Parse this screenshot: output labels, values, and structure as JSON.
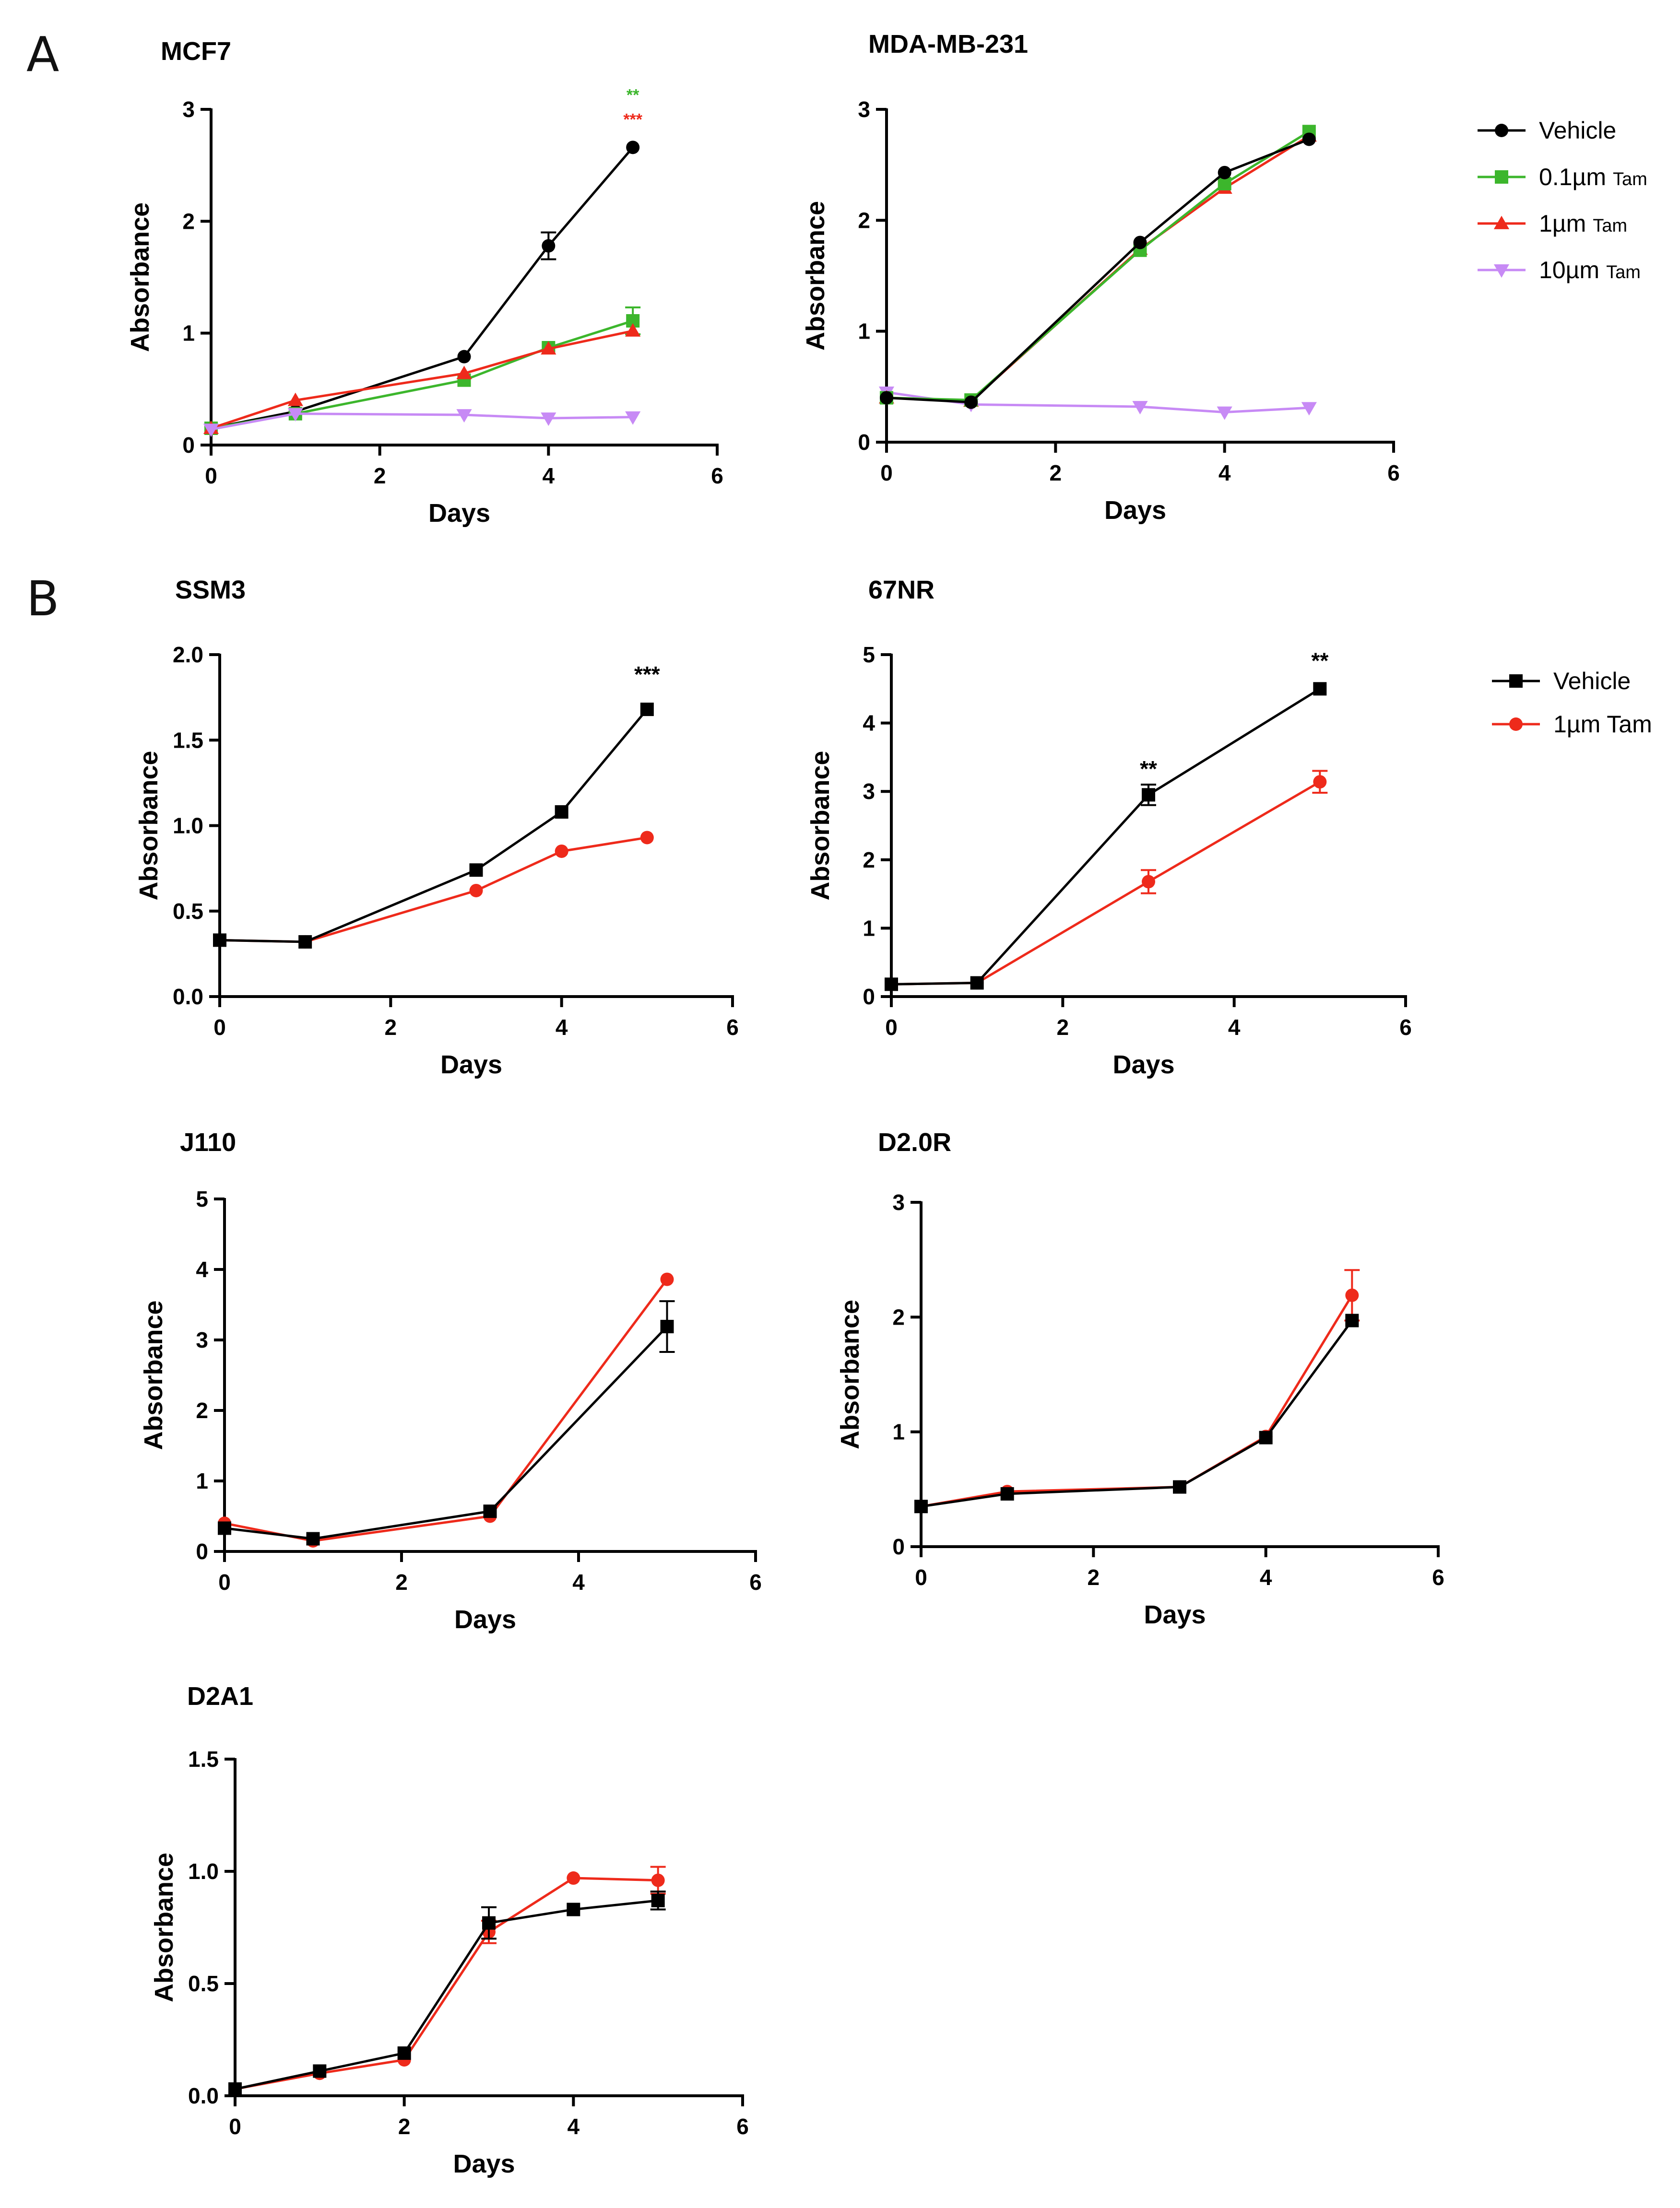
{
  "figure": {
    "panel_a_label": "A",
    "panel_b_label": "B"
  },
  "legend_a": {
    "entries": [
      {
        "name": "Vehicle",
        "suffix": "",
        "color": "#000000",
        "marker": "circle"
      },
      {
        "name": "0.1µm",
        "suffix": "Tam",
        "color": "#3cb62c",
        "marker": "square"
      },
      {
        "name": "1µm",
        "suffix": "Tam",
        "color": "#ee2a1b",
        "marker": "triangle"
      },
      {
        "name": "10µm",
        "suffix": "Tam",
        "color": "#c78af5",
        "marker": "triangle-down"
      }
    ]
  },
  "legend_b": {
    "entries": [
      {
        "name": "Vehicle",
        "suffix": "",
        "color": "#000000",
        "marker": "square"
      },
      {
        "name": "1µm Tam",
        "suffix": "",
        "color": "#ee2a1b",
        "marker": "circle"
      }
    ]
  },
  "chart_data": [
    {
      "id": "mcf7",
      "type": "line",
      "title": "MCF7",
      "xlabel": "Days",
      "ylabel": "Absorbance",
      "xlim": [
        0,
        6
      ],
      "ylim": [
        0,
        3
      ],
      "xticks": [
        0,
        2,
        4,
        6
      ],
      "yticks": [
        0,
        1,
        2,
        3
      ],
      "x": [
        0,
        1,
        3,
        4,
        5
      ],
      "series": [
        {
          "name": "Vehicle",
          "color": "#000000",
          "marker": "circle",
          "values": [
            0.15,
            0.3,
            0.79,
            1.78,
            2.66
          ],
          "err": [
            0,
            0,
            0,
            0.12,
            0
          ]
        },
        {
          "name": "0.1µm Tam",
          "color": "#3cb62c",
          "marker": "square",
          "values": [
            0.15,
            0.28,
            0.58,
            0.87,
            1.11
          ],
          "err": [
            0,
            0,
            0,
            0,
            0.12
          ]
        },
        {
          "name": "1µm Tam",
          "color": "#ee2a1b",
          "marker": "triangle",
          "values": [
            0.15,
            0.4,
            0.64,
            0.86,
            1.02
          ],
          "err": [
            0,
            0,
            0,
            0,
            0
          ]
        },
        {
          "name": "10µm Tam",
          "color": "#c78af5",
          "marker": "triangle-down",
          "values": [
            0.14,
            0.28,
            0.27,
            0.24,
            0.25
          ],
          "err": [
            0,
            0,
            0,
            0,
            0
          ]
        }
      ],
      "annotations": [
        {
          "text": "**",
          "x": 5,
          "y": 3.08,
          "color": "#3cb62c",
          "size": "small"
        },
        {
          "text": "***",
          "x": 5,
          "y": 2.86,
          "color": "#ee2a1b",
          "size": "small"
        }
      ]
    },
    {
      "id": "mdamb231",
      "type": "line",
      "title": "MDA-MB-231",
      "xlabel": "Days",
      "ylabel": "Absorbance",
      "xlim": [
        0,
        6
      ],
      "ylim": [
        0,
        3
      ],
      "xticks": [
        0,
        2,
        4,
        6
      ],
      "yticks": [
        0,
        1,
        2,
        3
      ],
      "x": [
        0,
        1,
        3,
        4,
        5
      ],
      "series": [
        {
          "name": "10µm Tam",
          "color": "#c78af5",
          "marker": "triangle-down",
          "values": [
            0.45,
            0.34,
            0.32,
            0.27,
            0.31
          ],
          "err": [
            0,
            0,
            0,
            0,
            0
          ]
        },
        {
          "name": "1µm Tam",
          "color": "#ee2a1b",
          "marker": "triangle",
          "values": [
            0.4,
            0.37,
            1.74,
            2.29,
            2.76
          ],
          "err": [
            0,
            0,
            0,
            0,
            0
          ]
        },
        {
          "name": "0.1µm Tam",
          "color": "#3cb62c",
          "marker": "square",
          "values": [
            0.4,
            0.38,
            1.73,
            2.33,
            2.8
          ],
          "err": [
            0,
            0,
            0,
            0,
            0
          ]
        },
        {
          "name": "Vehicle",
          "color": "#000000",
          "marker": "circle",
          "values": [
            0.4,
            0.36,
            1.8,
            2.43,
            2.73
          ],
          "err": [
            0,
            0,
            0,
            0,
            0
          ]
        }
      ],
      "annotations": []
    },
    {
      "id": "ssm3",
      "type": "line",
      "title": "SSM3",
      "xlabel": "Days",
      "ylabel": "Absorbance",
      "xlim": [
        0,
        6
      ],
      "ylim": [
        0,
        2
      ],
      "xticks": [
        0,
        2,
        4,
        6
      ],
      "yticks": [
        0,
        0.5,
        1.0,
        1.5,
        2.0
      ],
      "ytick_labels": [
        "0.0",
        "0.5",
        "1.0",
        "1.5",
        "2.0"
      ],
      "x": [
        0,
        1,
        3,
        4,
        5
      ],
      "series": [
        {
          "name": "1µm Tam",
          "color": "#ee2a1b",
          "marker": "circle",
          "values": [
            0.33,
            0.32,
            0.62,
            0.85,
            0.93
          ],
          "err": [
            0,
            0,
            0,
            0,
            0
          ]
        },
        {
          "name": "Vehicle",
          "color": "#000000",
          "marker": "square",
          "values": [
            0.33,
            0.32,
            0.74,
            1.08,
            1.68
          ],
          "err": [
            0,
            0,
            0,
            0,
            0
          ]
        }
      ],
      "annotations": [
        {
          "text": "***",
          "x": 5,
          "y": 1.84,
          "color": "#000000",
          "size": "large"
        }
      ]
    },
    {
      "id": "67nr",
      "type": "line",
      "title": "67NR",
      "xlabel": "Days",
      "ylabel": "Absorbance",
      "xlim": [
        0,
        6
      ],
      "ylim": [
        0,
        5
      ],
      "xticks": [
        0,
        2,
        4,
        6
      ],
      "yticks": [
        0,
        1,
        2,
        3,
        4,
        5
      ],
      "x": [
        0,
        1,
        3,
        5
      ],
      "series": [
        {
          "name": "1µm Tam",
          "color": "#ee2a1b",
          "marker": "circle",
          "values": [
            0.18,
            0.2,
            1.68,
            3.14
          ],
          "err": [
            0,
            0,
            0.17,
            0.16
          ]
        },
        {
          "name": "Vehicle",
          "color": "#000000",
          "marker": "square",
          "values": [
            0.18,
            0.2,
            2.95,
            4.5
          ],
          "err": [
            0,
            0,
            0.15,
            0
          ]
        }
      ],
      "annotations": [
        {
          "text": "**",
          "x": 3,
          "y": 3.22,
          "color": "#000000",
          "size": "large"
        },
        {
          "text": "**",
          "x": 5,
          "y": 4.8,
          "color": "#000000",
          "size": "large"
        }
      ]
    },
    {
      "id": "j110",
      "type": "line",
      "title": "J110",
      "xlabel": "Days",
      "ylabel": "Absorbance",
      "xlim": [
        0,
        6
      ],
      "ylim": [
        0,
        5
      ],
      "xticks": [
        0,
        2,
        4,
        6
      ],
      "yticks": [
        0,
        1,
        2,
        3,
        4,
        5
      ],
      "x": [
        0,
        1,
        3,
        5
      ],
      "series": [
        {
          "name": "1µm Tam",
          "color": "#ee2a1b",
          "marker": "circle",
          "values": [
            0.4,
            0.15,
            0.5,
            3.86
          ],
          "err": [
            0,
            0,
            0,
            0
          ]
        },
        {
          "name": "Vehicle",
          "color": "#000000",
          "marker": "square",
          "values": [
            0.33,
            0.18,
            0.57,
            3.19
          ],
          "err": [
            0,
            0,
            0,
            0.36
          ]
        }
      ],
      "annotations": []
    },
    {
      "id": "d20r",
      "type": "line",
      "title": "D2.0R",
      "xlabel": "Days",
      "ylabel": "Absorbance",
      "xlim": [
        0,
        6
      ],
      "ylim": [
        0,
        3
      ],
      "xticks": [
        0,
        2,
        4,
        6
      ],
      "yticks": [
        0,
        1,
        2,
        3
      ],
      "x": [
        0,
        1,
        3,
        4,
        5
      ],
      "series": [
        {
          "name": "1µm Tam",
          "color": "#ee2a1b",
          "marker": "circle",
          "values": [
            0.35,
            0.48,
            0.52,
            0.96,
            2.19
          ],
          "err": [
            0,
            0,
            0,
            0,
            0.22
          ]
        },
        {
          "name": "Vehicle",
          "color": "#000000",
          "marker": "square",
          "values": [
            0.35,
            0.46,
            0.52,
            0.95,
            1.97
          ],
          "err": [
            0,
            0,
            0,
            0,
            0
          ]
        }
      ],
      "annotations": []
    },
    {
      "id": "d2a1",
      "type": "line",
      "title": "D2A1",
      "xlabel": "Days",
      "ylabel": "Absorbance",
      "xlim": [
        0,
        6
      ],
      "ylim": [
        0,
        1.5
      ],
      "xticks": [
        0,
        2,
        4,
        6
      ],
      "yticks": [
        0,
        0.5,
        1.0,
        1.5
      ],
      "ytick_labels": [
        "0.0",
        "0.5",
        "1.0",
        "1.5"
      ],
      "x": [
        0,
        1,
        2,
        3,
        4,
        5
      ],
      "series": [
        {
          "name": "1µm Tam",
          "color": "#ee2a1b",
          "marker": "circle",
          "values": [
            0.03,
            0.1,
            0.16,
            0.73,
            0.97,
            0.96
          ],
          "err": [
            0,
            0,
            0,
            0.05,
            0,
            0.06
          ]
        },
        {
          "name": "Vehicle",
          "color": "#000000",
          "marker": "square",
          "values": [
            0.03,
            0.11,
            0.19,
            0.77,
            0.83,
            0.87
          ],
          "err": [
            0,
            0,
            0,
            0.07,
            0,
            0.04
          ]
        }
      ],
      "annotations": []
    }
  ]
}
